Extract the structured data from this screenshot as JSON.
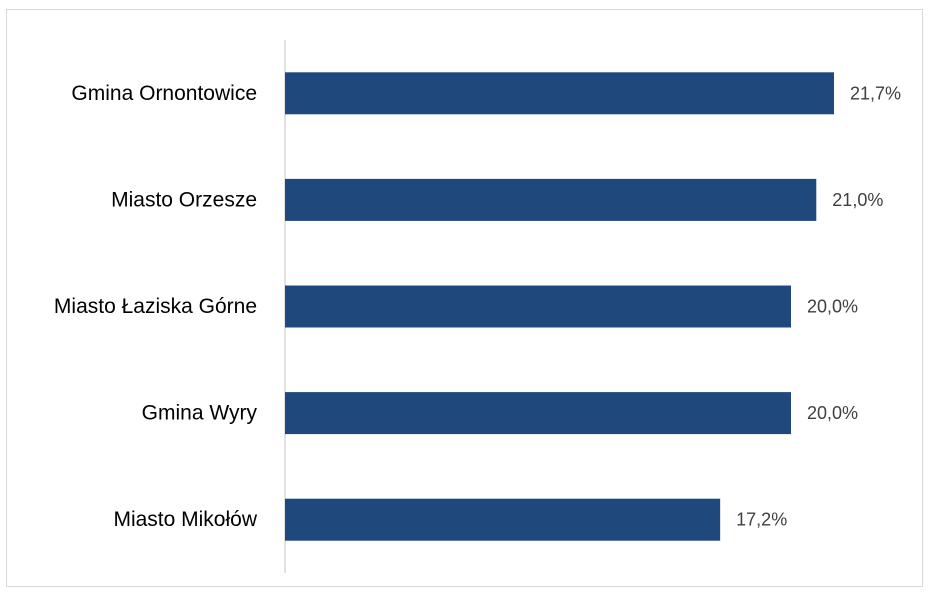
{
  "chart_data": {
    "type": "bar",
    "orientation": "horizontal",
    "categories": [
      "Gmina Ornontowice",
      "Miasto Orzesze",
      "Miasto Łaziska Górne",
      "Gmina Wyry",
      "Miasto Mikołów"
    ],
    "values": [
      21.7,
      21.0,
      20.0,
      20.0,
      17.2
    ],
    "value_labels": [
      "21,7%",
      "21,0%",
      "20,0%",
      "20,0%",
      "17,2%"
    ],
    "title": "",
    "xlabel": "",
    "ylabel": "",
    "xlim": [
      0,
      23
    ],
    "grid": false,
    "legend": "none",
    "bar_color": "#1f497d"
  }
}
